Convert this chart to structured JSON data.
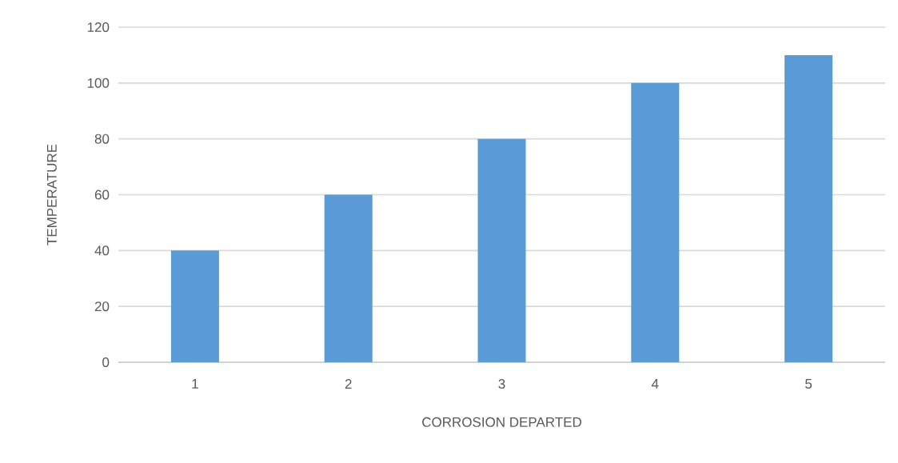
{
  "chart_data": {
    "type": "bar",
    "xlabel": "CORROSION DEPARTED",
    "ylabel": "TEMPERATURE",
    "categories": [
      "1",
      "2",
      "3",
      "4",
      "5"
    ],
    "values": [
      40,
      60,
      80,
      100,
      110
    ],
    "color": "#5b9bd5",
    "ylim": [
      0,
      120
    ],
    "yticks": [
      0,
      20,
      40,
      60,
      80,
      100,
      120
    ],
    "grid": "y"
  }
}
